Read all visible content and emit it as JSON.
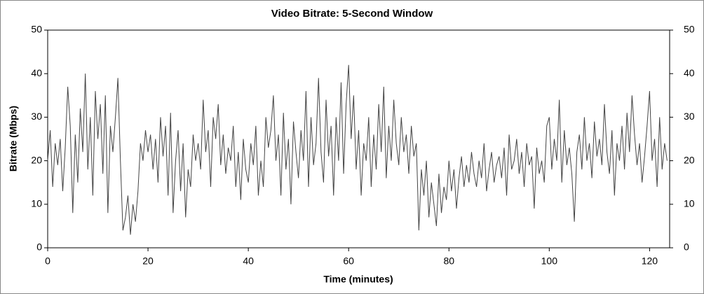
{
  "chart_data": {
    "type": "line",
    "title": "Video Bitrate: 5-Second Window",
    "x_label": "Time (minutes)",
    "y_label": "Bitrate (Mbps)",
    "xlim": [
      0,
      124
    ],
    "xticks": [
      0,
      20,
      40,
      60,
      80,
      100,
      120
    ],
    "ylim": [
      0,
      50
    ],
    "yticks": [
      0,
      10,
      20,
      30,
      40,
      50
    ],
    "y2lim": [
      0,
      50
    ],
    "y2ticks": [
      0,
      10,
      20,
      30,
      40,
      50
    ],
    "x": [
      0,
      0.5,
      1,
      1.5,
      2,
      2.5,
      3,
      3.5,
      4,
      4.5,
      5,
      5.5,
      6,
      6.5,
      7,
      7.5,
      8,
      8.5,
      9,
      9.5,
      10,
      10.5,
      11,
      11.5,
      12,
      12.5,
      13,
      13.5,
      14,
      14.5,
      15,
      15.5,
      16,
      16.5,
      17,
      17.5,
      18,
      18.5,
      19,
      19.5,
      20,
      20.5,
      21,
      21.5,
      22,
      22.5,
      23,
      23.5,
      24,
      24.5,
      25,
      25.5,
      26,
      26.5,
      27,
      27.5,
      28,
      28.5,
      29,
      29.5,
      30,
      30.5,
      31,
      31.5,
      32,
      32.5,
      33,
      33.5,
      34,
      34.5,
      35,
      35.5,
      36,
      36.5,
      37,
      37.5,
      38,
      38.5,
      39,
      39.5,
      40,
      40.5,
      41,
      41.5,
      42,
      42.5,
      43,
      43.5,
      44,
      44.5,
      45,
      45.5,
      46,
      46.5,
      47,
      47.5,
      48,
      48.5,
      49,
      49.5,
      50,
      50.5,
      51,
      51.5,
      52,
      52.5,
      53,
      53.5,
      54,
      54.5,
      55,
      55.5,
      56,
      56.5,
      57,
      57.5,
      58,
      58.5,
      59,
      59.5,
      60,
      60.5,
      61,
      61.5,
      62,
      62.5,
      63,
      63.5,
      64,
      64.5,
      65,
      65.5,
      66,
      66.5,
      67,
      67.5,
      68,
      68.5,
      69,
      69.5,
      70,
      70.5,
      71,
      71.5,
      72,
      72.5,
      73,
      73.5,
      74,
      74.5,
      75,
      75.5,
      76,
      76.5,
      77,
      77.5,
      78,
      78.5,
      79,
      79.5,
      80,
      80.5,
      81,
      81.5,
      82,
      82.5,
      83,
      83.5,
      84,
      84.5,
      85,
      85.5,
      86,
      86.5,
      87,
      87.5,
      88,
      88.5,
      89,
      89.5,
      90,
      90.5,
      91,
      91.5,
      92,
      92.5,
      93,
      93.5,
      94,
      94.5,
      95,
      95.5,
      96,
      96.5,
      97,
      97.5,
      98,
      98.5,
      99,
      99.5,
      100,
      100.5,
      101,
      101.5,
      102,
      102.5,
      103,
      103.5,
      104,
      104.5,
      105,
      105.5,
      106,
      106.5,
      107,
      107.5,
      108,
      108.5,
      109,
      109.5,
      110,
      110.5,
      111,
      111.5,
      112,
      112.5,
      113,
      113.5,
      114,
      114.5,
      115,
      115.5,
      116,
      116.5,
      117,
      117.5,
      118,
      118.5,
      119,
      119.5,
      120,
      120.5,
      121,
      121.5,
      122,
      122.5,
      123,
      123.5
    ],
    "values": [
      20,
      27,
      14,
      24,
      19,
      25,
      13,
      23,
      37,
      28,
      8,
      26,
      15,
      32,
      22,
      40,
      18,
      30,
      12,
      36,
      25,
      33,
      17,
      35,
      8,
      28,
      22,
      30,
      39,
      20,
      4,
      7,
      12,
      3,
      10,
      6,
      13,
      24,
      20,
      27,
      22,
      26,
      18,
      25,
      15,
      30,
      21,
      28,
      12,
      31,
      8,
      20,
      27,
      13,
      24,
      7,
      18,
      14,
      26,
      20,
      24,
      18,
      34,
      22,
      27,
      14,
      30,
      25,
      33,
      19,
      26,
      17,
      23,
      20,
      28,
      14,
      22,
      11,
      25,
      18,
      15,
      24,
      19,
      28,
      12,
      20,
      14,
      30,
      23,
      27,
      35,
      20,
      26,
      12,
      31,
      18,
      25,
      10,
      29,
      22,
      16,
      27,
      20,
      36,
      14,
      30,
      19,
      24,
      39,
      22,
      15,
      34,
      21,
      28,
      12,
      30,
      20,
      38,
      17,
      33,
      42,
      25,
      35,
      18,
      27,
      12,
      24,
      20,
      30,
      14,
      26,
      18,
      33,
      22,
      37,
      16,
      28,
      20,
      34,
      24,
      19,
      30,
      22,
      26,
      17,
      28,
      21,
      24,
      4,
      18,
      12,
      20,
      7,
      15,
      10,
      5,
      17,
      8,
      14,
      11,
      20,
      13,
      18,
      9,
      16,
      21,
      14,
      19,
      15,
      22,
      17,
      14,
      20,
      16,
      24,
      13,
      18,
      22,
      15,
      19,
      21,
      16,
      23,
      12,
      26,
      18,
      20,
      25,
      17,
      22,
      14,
      24,
      19,
      21,
      9,
      23,
      17,
      20,
      15,
      28,
      30,
      18,
      25,
      20,
      34,
      15,
      27,
      19,
      23,
      17,
      6,
      22,
      26,
      18,
      30,
      20,
      24,
      16,
      29,
      21,
      25,
      19,
      33,
      22,
      17,
      27,
      12,
      24,
      20,
      28,
      18,
      31,
      22,
      35,
      26,
      19,
      24,
      15,
      21,
      28,
      36,
      20,
      25,
      14,
      30,
      18,
      24,
      20
    ],
    "color": "#444444"
  }
}
